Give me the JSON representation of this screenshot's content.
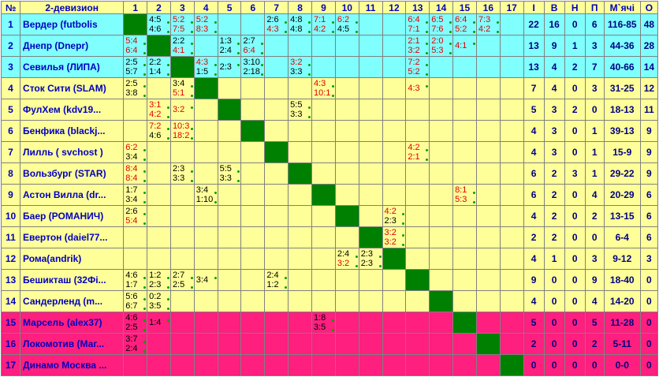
{
  "header": [
    "№",
    "2-девизион",
    "1",
    "2",
    "3",
    "4",
    "5",
    "6",
    "7",
    "8",
    "9",
    "10",
    "11",
    "12",
    "13",
    "14",
    "15",
    "16",
    "17",
    "I",
    "В",
    "Н",
    "П",
    "М`ячі",
    "О"
  ],
  "rows": [
    {
      "num": 1,
      "team": "Вердер (futbolis",
      "color": "#80ffff",
      "cells": {
        "2": [
          "4:5",
          "4:6"
        ],
        "3": [
          "5:2",
          "7:5"
        ],
        "4": [
          "5:2",
          "8:3"
        ],
        "7": [
          "2:6",
          "4:3"
        ],
        "8": [
          "4:8",
          "4:8"
        ],
        "9": [
          "7:1",
          "4:2"
        ],
        "10": [
          "6:2",
          "4:5"
        ],
        "13": [
          "6:4",
          "7:1"
        ],
        "14": [
          "6:5",
          "7:6"
        ],
        "15": [
          "6:4",
          "5:2"
        ],
        "16": [
          "7:3",
          "4:2"
        ]
      },
      "stats": [
        22,
        16,
        0,
        6,
        "116-85",
        48
      ]
    },
    {
      "num": 2,
      "team": "Днепр (Dnepr)",
      "color": "#80ffff",
      "cells": {
        "1": [
          "5:4",
          "6:4"
        ],
        "3": [
          "2:2",
          "4:1"
        ],
        "5": [
          "1:3",
          "2:4"
        ],
        "6": [
          "2:7",
          "6:4"
        ],
        "13": [
          "2:1",
          "3:2"
        ],
        "14": [
          "2:0",
          "5:3"
        ],
        "15": [
          "4:1"
        ]
      },
      "stats": [
        13,
        9,
        1,
        3,
        "44-36",
        28
      ]
    },
    {
      "num": 3,
      "team": "Севилья (ЛИПА)",
      "color": "#80ffff",
      "cells": {
        "1": [
          "2:5",
          "5:7"
        ],
        "2": [
          "2:2",
          "1:4"
        ],
        "4": [
          "4:3",
          "1:5"
        ],
        "5": [
          "2:3"
        ],
        "6": [
          "3:10",
          "2:18"
        ],
        "8": [
          "3:2",
          "3:3"
        ],
        "13": [
          "7:2",
          "5:2"
        ]
      },
      "stats": [
        13,
        4,
        2,
        7,
        "40-66",
        14
      ]
    },
    {
      "num": 4,
      "team": "Сток Сити (SLAM)",
      "color": "#ffff99",
      "cells": {
        "1": [
          "2:5",
          "3:8"
        ],
        "3": [
          "3:4",
          "5:1"
        ],
        "9": [
          "4:3",
          "10:1"
        ],
        "13": [
          "4:3"
        ]
      },
      "stats": [
        7,
        4,
        0,
        3,
        "31-25",
        12
      ]
    },
    {
      "num": 5,
      "team": "ФулХем (kdv19...",
      "color": "#ffff99",
      "cells": {
        "2": [
          "3:1",
          "4:2"
        ],
        "3": [
          "3:2"
        ],
        "8": [
          "5:5",
          "3:3"
        ]
      },
      "stats": [
        5,
        3,
        2,
        0,
        "18-13",
        11
      ]
    },
    {
      "num": 6,
      "team": "Бенфика (blackj...",
      "color": "#ffff99",
      "cells": {
        "2": [
          "7:2",
          "4:6"
        ],
        "3": [
          "10:3",
          "18:2"
        ]
      },
      "stats": [
        4,
        3,
        0,
        1,
        "39-13",
        9
      ]
    },
    {
      "num": 7,
      "team": "Лилль ( svchost )",
      "color": "#ffff99",
      "cells": {
        "1": [
          "6:2",
          "3:4"
        ],
        "13": [
          "4:2",
          "2:1"
        ]
      },
      "stats": [
        4,
        3,
        0,
        1,
        "15-9",
        9
      ]
    },
    {
      "num": 8,
      "team": "Вользбург (STAR)",
      "color": "#ffff99",
      "cells": {
        "1": [
          "8:4",
          "8:4"
        ],
        "3": [
          "2:3",
          "3:3"
        ],
        "5": [
          "5:5",
          "3:3"
        ]
      },
      "stats": [
        6,
        2,
        3,
        1,
        "29-22",
        9
      ]
    },
    {
      "num": 9,
      "team": "Астон Вилла (dr...",
      "color": "#ffff99",
      "cells": {
        "1": [
          "1:7",
          "3:4"
        ],
        "4": [
          "3:4",
          "1:10"
        ],
        "15": [
          "8:1",
          "5:3"
        ]
      },
      "stats": [
        6,
        2,
        0,
        4,
        "20-29",
        6
      ]
    },
    {
      "num": 10,
      "team": "Баер (РОМАНИЧ)",
      "color": "#ffff99",
      "cells": {
        "1": [
          "2:6",
          "5:4"
        ],
        "12": [
          "4:2",
          "2:3"
        ]
      },
      "stats": [
        4,
        2,
        0,
        2,
        "13-15",
        6
      ]
    },
    {
      "num": 11,
      "team": "Евертон (daiel77...",
      "color": "#ffff99",
      "cells": {
        "12": [
          "3:2",
          "3:2"
        ]
      },
      "stats": [
        2,
        2,
        0,
        0,
        "6-4",
        6
      ]
    },
    {
      "num": 12,
      "team": "Рома(andrik)",
      "color": "#ffff99",
      "cells": {
        "10": [
          "2:4",
          "3:2"
        ],
        "11": [
          "2:3",
          "2:3"
        ]
      },
      "stats": [
        4,
        1,
        0,
        3,
        "9-12",
        3
      ]
    },
    {
      "num": 13,
      "team": "Бешикташ (32Фі...",
      "color": "#ffff99",
      "cells": {
        "1": [
          "4:6",
          "1:7"
        ],
        "2": [
          "1:2",
          "2:3"
        ],
        "3": [
          "2:7",
          "2:5"
        ],
        "4": [
          "3:4"
        ],
        "7": [
          "2:4",
          "1:2"
        ]
      },
      "stats": [
        9,
        0,
        0,
        9,
        "18-40",
        0
      ]
    },
    {
      "num": 14,
      "team": "Сандерленд (m...",
      "color": "#ffff99",
      "cells": {
        "1": [
          "5:6",
          "6:7"
        ],
        "2": [
          "0:2",
          "3:5"
        ]
      },
      "stats": [
        4,
        0,
        0,
        4,
        "14-20",
        0
      ]
    },
    {
      "num": 15,
      "team": "Марсель (alex37)",
      "color": "#ff1f7f",
      "cells": {
        "1": [
          "4:6",
          "2:5"
        ],
        "2": [
          "1:4"
        ],
        "9": [
          "1:8",
          "3:5"
        ]
      },
      "stats": [
        5,
        0,
        0,
        5,
        "11-28",
        0
      ]
    },
    {
      "num": 16,
      "team": "Локомотив (Маг...",
      "color": "#ff1f7f",
      "cells": {
        "1": [
          "3:7",
          "2:4"
        ]
      },
      "stats": [
        2,
        0,
        0,
        2,
        "5-11",
        0
      ]
    },
    {
      "num": 17,
      "team": "Динамо Москва ...",
      "color": "#ff1f7f",
      "cells": {},
      "stats": [
        0,
        0,
        0,
        0,
        "0-0",
        0
      ]
    }
  ]
}
